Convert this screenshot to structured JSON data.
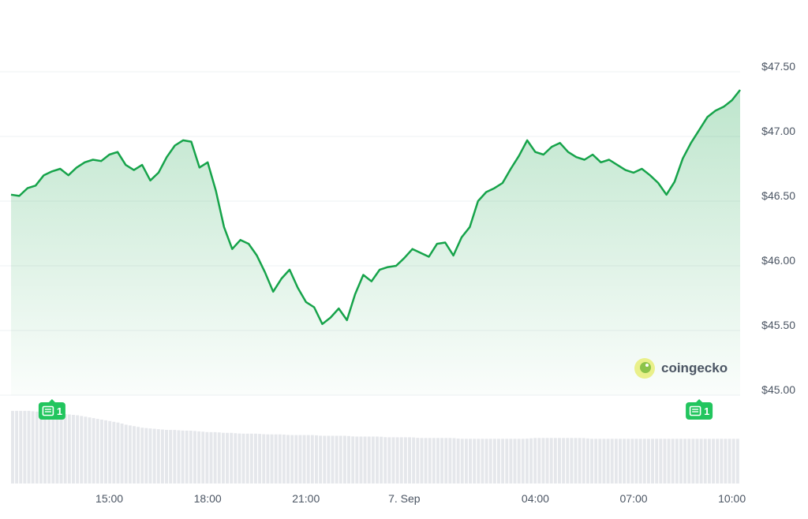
{
  "chart_data": {
    "type": "area",
    "x": [
      "12:00",
      "12:15",
      "12:30",
      "12:45",
      "13:00",
      "13:15",
      "13:30",
      "13:45",
      "14:00",
      "14:15",
      "14:30",
      "14:45",
      "15:00",
      "15:15",
      "15:30",
      "15:45",
      "16:00",
      "16:15",
      "16:30",
      "16:45",
      "17:00",
      "17:15",
      "17:30",
      "17:45",
      "18:00",
      "18:15",
      "18:30",
      "18:45",
      "19:00",
      "19:15",
      "19:30",
      "19:45",
      "20:00",
      "20:15",
      "20:30",
      "20:45",
      "21:00",
      "21:15",
      "21:30",
      "21:45",
      "22:00",
      "22:15",
      "22:30",
      "22:45",
      "23:00",
      "23:15",
      "23:30",
      "23:45",
      "00:00",
      "00:15",
      "00:30",
      "00:45",
      "01:00",
      "01:15",
      "01:30",
      "01:45",
      "02:00",
      "02:15",
      "02:30",
      "02:45",
      "03:00",
      "03:15",
      "03:30",
      "03:45",
      "04:00",
      "04:15",
      "04:30",
      "04:45",
      "05:00",
      "05:15",
      "05:30",
      "05:45",
      "06:00",
      "06:15",
      "06:30",
      "06:45",
      "07:00",
      "07:15",
      "07:30",
      "07:45",
      "08:00",
      "08:15",
      "08:30",
      "08:45",
      "09:00",
      "09:15",
      "09:30",
      "09:45",
      "10:00",
      "10:15"
    ],
    "series": [
      {
        "values": [
          46.55,
          46.54,
          46.6,
          46.62,
          46.7,
          46.73,
          46.75,
          46.7,
          46.76,
          46.8,
          46.82,
          46.81,
          46.86,
          46.88,
          46.78,
          46.74,
          46.78,
          46.66,
          46.72,
          46.84,
          46.93,
          46.97,
          46.96,
          46.76,
          46.8,
          46.58,
          46.3,
          46.13,
          46.2,
          46.17,
          46.08,
          45.95,
          45.8,
          45.9,
          45.97,
          45.83,
          45.72,
          45.68,
          45.55,
          45.6,
          45.67,
          45.58,
          45.78,
          45.93,
          45.88,
          45.97,
          45.99,
          46.0,
          46.06,
          46.13,
          46.1,
          46.07,
          46.17,
          46.18,
          46.08,
          46.22,
          46.3,
          46.5,
          46.57,
          46.6,
          46.64,
          46.75,
          46.85,
          46.97,
          46.88,
          46.86,
          46.92,
          46.95,
          46.88,
          46.84,
          46.82,
          46.86,
          46.8,
          46.82,
          46.78,
          46.74,
          46.72,
          46.75,
          46.7,
          46.64,
          46.55,
          46.65,
          46.83,
          46.95,
          47.05,
          47.15,
          47.2,
          47.23,
          47.28,
          47.36
        ]
      }
    ],
    "volume": [
      0.99,
      0.99,
      0.99,
      0.98,
      0.97,
      0.96,
      0.95,
      0.94,
      0.93,
      0.91,
      0.89,
      0.87,
      0.85,
      0.83,
      0.8,
      0.78,
      0.76,
      0.75,
      0.74,
      0.73,
      0.73,
      0.72,
      0.72,
      0.71,
      0.7,
      0.7,
      0.69,
      0.69,
      0.68,
      0.68,
      0.68,
      0.67,
      0.67,
      0.67,
      0.66,
      0.66,
      0.66,
      0.66,
      0.65,
      0.65,
      0.65,
      0.65,
      0.64,
      0.64,
      0.64,
      0.64,
      0.63,
      0.63,
      0.63,
      0.63,
      0.62,
      0.62,
      0.62,
      0.62,
      0.62,
      0.61,
      0.61,
      0.61,
      0.61,
      0.61,
      0.61,
      0.61,
      0.61,
      0.61,
      0.62,
      0.62,
      0.62,
      0.62,
      0.62,
      0.62,
      0.62,
      0.61,
      0.61,
      0.61,
      0.61,
      0.61,
      0.61,
      0.61,
      0.61,
      0.61,
      0.61,
      0.61,
      0.61,
      0.61,
      0.61,
      0.61,
      0.61,
      0.61,
      0.61,
      0.61
    ],
    "y_ticks": [
      "$47.50",
      "$47.00",
      "$46.50",
      "$46.00",
      "$45.50",
      "$45.00"
    ],
    "y_tick_values": [
      47.5,
      47.0,
      46.5,
      46.0,
      45.5,
      45.0
    ],
    "x_ticks": [
      "15:00",
      "18:00",
      "21:00",
      "7. Sep",
      "04:00",
      "07:00",
      "10:00"
    ],
    "x_tick_positions": [
      "15:00",
      "18:00",
      "21:00",
      "00:00",
      "04:00",
      "07:00",
      "10:00"
    ],
    "ylim": [
      45.0,
      47.75
    ],
    "grid": true,
    "line_color": "#16a34a",
    "fill_color": "#16a34a",
    "volume_color": "#e5e7eb",
    "news_badges": [
      {
        "time": "13:15",
        "count": "1"
      },
      {
        "time": "09:00",
        "count": "1"
      }
    ],
    "badge_color": "#22c55e",
    "watermark": "coingecko",
    "title": "",
    "xlabel": "",
    "ylabel": ""
  }
}
